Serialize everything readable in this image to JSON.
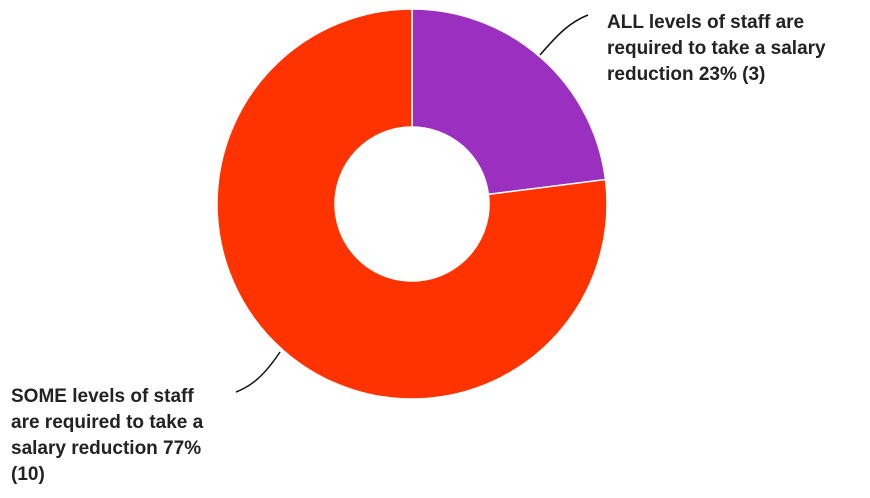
{
  "chart_data": {
    "type": "pie",
    "style": "donut",
    "slices": [
      {
        "label_lines": [
          "ALL levels of staff are",
          "required to take a salary",
          "reduction 23% (3)"
        ],
        "percent": 23,
        "count": 3,
        "color": "#9b2fbf"
      },
      {
        "label_lines": [
          "SOME levels of staff",
          "are required to take a",
          "salary reduction 77%",
          "(10)"
        ],
        "percent": 77,
        "count": 10,
        "color": "#ff3300"
      }
    ],
    "legend": "none",
    "start_angle_deg": 0,
    "direction": "clockwise"
  }
}
